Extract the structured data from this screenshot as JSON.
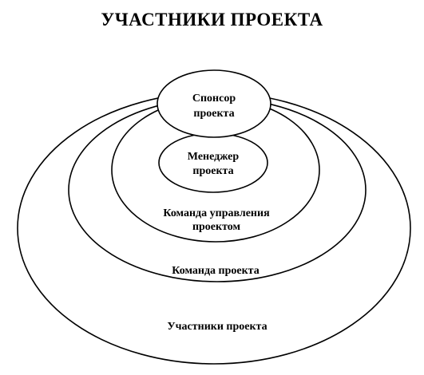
{
  "title": "УЧАСТНИКИ ПРОЕКТА",
  "diagram": {
    "circles": {
      "outer": {
        "label": "Участники проекта"
      },
      "team": {
        "label": "Команда проекта"
      },
      "management": {
        "label_line1": "Команда управления",
        "label_line2": "проектом"
      },
      "manager": {
        "label_line1": "Менеджер",
        "label_line2": "проекта"
      },
      "sponsor": {
        "label_line1": "Спонсор",
        "label_line2": "проекта"
      }
    }
  }
}
